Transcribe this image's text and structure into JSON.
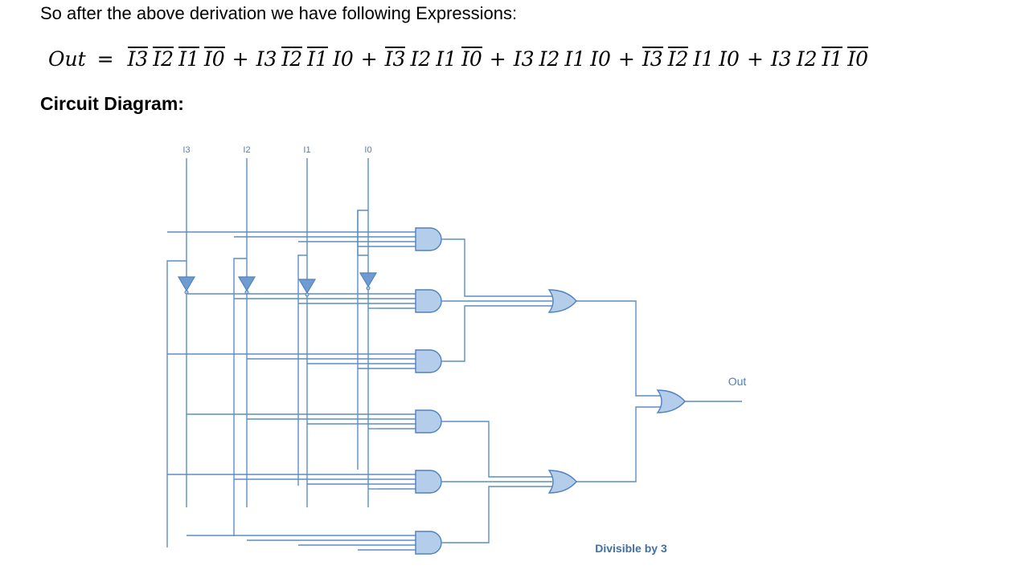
{
  "intro": "So after the above derivation we have following Expressions:",
  "equation": {
    "lhs": "Out",
    "eq": "=",
    "terms": [
      [
        {
          "v": "I3",
          "bar": true
        },
        {
          "v": "I2",
          "bar": true
        },
        {
          "v": "I1",
          "bar": true
        },
        {
          "v": "I0",
          "bar": true
        }
      ],
      [
        {
          "v": "I3",
          "bar": false
        },
        {
          "v": "I2",
          "bar": true
        },
        {
          "v": "I1",
          "bar": true
        },
        {
          "v": "I0",
          "bar": false
        }
      ],
      [
        {
          "v": "I3",
          "bar": true
        },
        {
          "v": "I2",
          "bar": false
        },
        {
          "v": "I1",
          "bar": false
        },
        {
          "v": "I0",
          "bar": true
        }
      ],
      [
        {
          "v": "I3",
          "bar": false
        },
        {
          "v": "I2",
          "bar": false
        },
        {
          "v": "I1",
          "bar": false
        },
        {
          "v": "I0",
          "bar": false
        }
      ],
      [
        {
          "v": "I3",
          "bar": true
        },
        {
          "v": "I2",
          "bar": true
        },
        {
          "v": "I1",
          "bar": false
        },
        {
          "v": "I0",
          "bar": false
        }
      ],
      [
        {
          "v": "I3",
          "bar": false
        },
        {
          "v": "I2",
          "bar": false
        },
        {
          "v": "I1",
          "bar": true
        },
        {
          "v": "I0",
          "bar": true
        }
      ]
    ],
    "plus": "+"
  },
  "heading": "Circuit Diagram:",
  "circuit": {
    "inputs": [
      "I3",
      "I2",
      "I1",
      "I0"
    ],
    "output_label": "Out",
    "caption": "Divisible by 3",
    "colors": {
      "wire": "#5b8ec6",
      "gate_fill": "#b3cdea",
      "gate_stroke": "#4f81bd",
      "label": "#4f7fb8",
      "caption": "#3f6fa8"
    }
  }
}
